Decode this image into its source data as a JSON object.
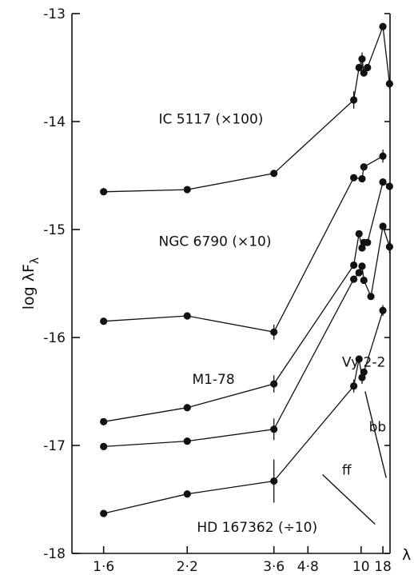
{
  "chart_data": {
    "type": "line",
    "title": "",
    "xlabel": "λ",
    "ylabel": "log λF_λ",
    "ylim": [
      -18,
      -13
    ],
    "xlim": [
      1.45,
      24.4
    ],
    "x_scale": "reciprocal",
    "x_ticks": [
      {
        "value": 1.6,
        "label": "1·6"
      },
      {
        "value": 2.2,
        "label": "2·2"
      },
      {
        "value": 3.6,
        "label": "3·6"
      },
      {
        "value": 4.8,
        "label": "4·8"
      },
      {
        "value": 10,
        "label": "10"
      },
      {
        "value": 18,
        "label": "18"
      }
    ],
    "y_ticks": [
      {
        "value": -13,
        "label": "-13"
      },
      {
        "value": -14,
        "label": "-14"
      },
      {
        "value": -15,
        "label": "-15"
      },
      {
        "value": -16,
        "label": "-16"
      },
      {
        "value": -17,
        "label": "-17"
      },
      {
        "value": -18,
        "label": "-18"
      }
    ],
    "grid": false,
    "legend": "none",
    "series": [
      {
        "name": "IC 5117 (×100)",
        "points": [
          {
            "x": 1.6,
            "y": -14.65
          },
          {
            "x": 2.2,
            "y": -14.63
          },
          {
            "x": 3.6,
            "y": -14.48
          },
          {
            "x": 8.7,
            "y": -13.8,
            "err": 0.08
          },
          {
            "x": 9.6,
            "y": -13.5
          },
          {
            "x": 10.2,
            "y": -13.42,
            "err": 0.06
          },
          {
            "x": 10.6,
            "y": -13.55
          },
          {
            "x": 11.5,
            "y": -13.5
          },
          {
            "x": 18,
            "y": -13.12
          },
          {
            "x": 23.8,
            "y": -13.65,
            "err": 0.05
          }
        ]
      },
      {
        "name": "NGC 6790 (×10)",
        "points": [
          {
            "x": 1.6,
            "y": -15.85
          },
          {
            "x": 2.2,
            "y": -15.8
          },
          {
            "x": 3.6,
            "y": -15.95,
            "err": 0.07
          },
          {
            "x": 8.7,
            "y": -14.52
          },
          {
            "x": 10.2,
            "y": -14.53
          },
          {
            "x": 10.6,
            "y": -14.42
          },
          {
            "x": 18,
            "y": -14.32,
            "err": 0.06
          }
        ]
      },
      {
        "name": "M1-78",
        "points": [
          {
            "x": 1.6,
            "y": -16.78
          },
          {
            "x": 2.2,
            "y": -16.65
          },
          {
            "x": 3.6,
            "y": -16.43,
            "err": 0.08
          },
          {
            "x": 8.7,
            "y": -15.33
          },
          {
            "x": 9.6,
            "y": -15.04
          },
          {
            "x": 10.2,
            "y": -15.17
          },
          {
            "x": 10.6,
            "y": -15.12
          },
          {
            "x": 11.5,
            "y": -15.12
          },
          {
            "x": 18,
            "y": -14.56
          },
          {
            "x": 23.8,
            "y": -14.6
          }
        ]
      },
      {
        "name": "Vy 2-2",
        "points": [
          {
            "x": 1.6,
            "y": -17.01
          },
          {
            "x": 2.2,
            "y": -16.96
          },
          {
            "x": 3.6,
            "y": -16.85,
            "err": 0.1
          },
          {
            "x": 8.7,
            "y": -15.46
          },
          {
            "x": 9.6,
            "y": -15.4
          },
          {
            "x": 10.2,
            "y": -15.34
          },
          {
            "x": 10.6,
            "y": -15.47
          },
          {
            "x": 12.5,
            "y": -15.62
          },
          {
            "x": 18,
            "y": -14.97
          },
          {
            "x": 23.8,
            "y": -15.16,
            "err": 0.06
          }
        ]
      },
      {
        "name": "HD 167362 (÷10)",
        "points": [
          {
            "x": 1.6,
            "y": -17.63
          },
          {
            "x": 2.2,
            "y": -17.45
          },
          {
            "x": 3.6,
            "y": -17.33,
            "err": 0.2
          },
          {
            "x": 8.7,
            "y": -16.45,
            "err": 0.06
          },
          {
            "x": 9.6,
            "y": -16.2
          },
          {
            "x": 10.2,
            "y": -16.37,
            "err": 0.06
          },
          {
            "x": 10.6,
            "y": -16.32
          },
          {
            "x": 18,
            "y": -15.75,
            "err": 0.05
          }
        ]
      }
    ],
    "annotations": [
      {
        "text": "IC 5117 (×100)",
        "x": 1.95,
        "y": -14.02
      },
      {
        "text": "NGC 6790 (×10)",
        "x": 1.95,
        "y": -15.15
      },
      {
        "text": "M1-78",
        "x": 2.25,
        "y": -16.43
      },
      {
        "text": "Vy 2-2",
        "x": 7.2,
        "y": -16.27
      },
      {
        "text": "bb",
        "x": 11.9,
        "y": -16.87
      },
      {
        "text": "ff",
        "x": 7.2,
        "y": -17.27
      },
      {
        "text": "HD 167362 (÷10)",
        "x": 2.3,
        "y": -17.8
      }
    ],
    "reference_lines": [
      {
        "name": "bb",
        "from": {
          "x": 10.9,
          "y": -16.5
        },
        "to": {
          "x": 20.5,
          "y": -17.3
        }
      },
      {
        "name": "ff",
        "from": {
          "x": 5.6,
          "y": -17.27
        },
        "to": {
          "x": 14,
          "y": -17.73
        }
      }
    ]
  }
}
